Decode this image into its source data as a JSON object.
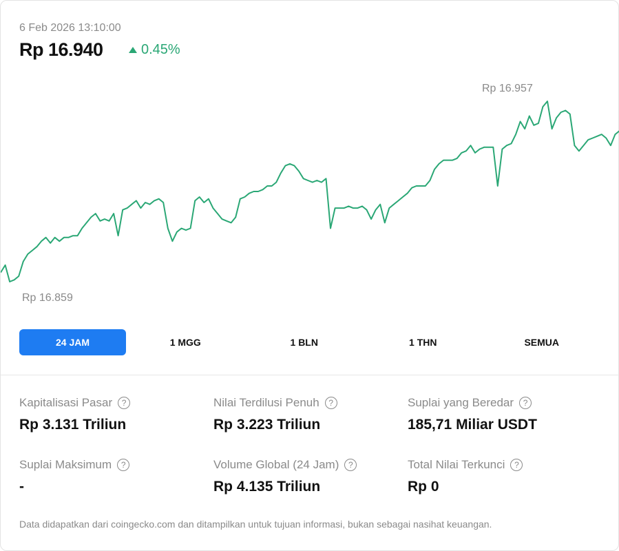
{
  "header": {
    "timestamp": "6 Feb 2026 13:10:00",
    "price": "Rp 16.940",
    "change": "0.45%",
    "change_direction": "up",
    "up_color": "#2aa775"
  },
  "chart_data": {
    "type": "line",
    "title": "",
    "xlabel": "",
    "ylabel": "",
    "high_label": "Rp 16.957",
    "low_label": "Rp 16.859",
    "ylim": [
      16859,
      16957
    ],
    "color": "#2aa775",
    "values": [
      16864,
      16868,
      16859,
      16860,
      16862,
      16870,
      16874,
      16876,
      16878,
      16881,
      16883,
      16880,
      16883,
      16881,
      16883,
      16883,
      16884,
      16884,
      16888,
      16891,
      16894,
      16896,
      16892,
      16893,
      16892,
      16896,
      16884,
      16898,
      16899,
      16901,
      16903,
      16899,
      16902,
      16901,
      16903,
      16904,
      16902,
      16888,
      16881,
      16886,
      16888,
      16887,
      16888,
      16903,
      16905,
      16902,
      16904,
      16899,
      16896,
      16893,
      16892,
      16891,
      16894,
      16904,
      16905,
      16907,
      16908,
      16908,
      16909,
      16911,
      16911,
      16913,
      16918,
      16922,
      16923,
      16922,
      16919,
      16915,
      16914,
      16913,
      16914,
      16913,
      16915,
      16888,
      16899,
      16899,
      16899,
      16900,
      16899,
      16899,
      16900,
      16898,
      16893,
      16898,
      16901,
      16891,
      16899,
      16901,
      16903,
      16905,
      16907,
      16910,
      16911,
      16911,
      16911,
      16914,
      16920,
      16923,
      16925,
      16925,
      16925,
      16926,
      16929,
      16930,
      16933,
      16929,
      16931,
      16932,
      16932,
      16932,
      16911,
      16931,
      16933,
      16934,
      16939,
      16946,
      16942,
      16949,
      16944,
      16945,
      16954,
      16957,
      16942,
      16948,
      16951,
      16952,
      16950,
      16933,
      16930,
      16933,
      16936,
      16937,
      16938,
      16939,
      16937,
      16933,
      16939,
      16941
    ]
  },
  "periods": [
    {
      "label": "24 JAM",
      "active": true
    },
    {
      "label": "1 MGG"
    },
    {
      "label": "1 BLN"
    },
    {
      "label": "1 THN"
    },
    {
      "label": "SEMUA"
    }
  ],
  "stats": [
    {
      "label": "Kapitalisasi Pasar",
      "value": "Rp 3.131 Triliun"
    },
    {
      "label": "Nilai Terdilusi Penuh",
      "value": "Rp 3.223 Triliun"
    },
    {
      "label": "Suplai yang Beredar",
      "value": "185,71 Miliar USDT"
    },
    {
      "label": "Suplai Maksimum",
      "value": "-"
    },
    {
      "label": "Volume Global (24 Jam)",
      "value": "Rp 4.135 Triliun"
    },
    {
      "label": "Total Nilai Terkunci",
      "value": "Rp 0"
    }
  ],
  "help_icon": "?",
  "footer": "Data didapatkan dari coingecko.com dan ditampilkan untuk tujuan informasi, bukan sebagai nasihat keuangan."
}
